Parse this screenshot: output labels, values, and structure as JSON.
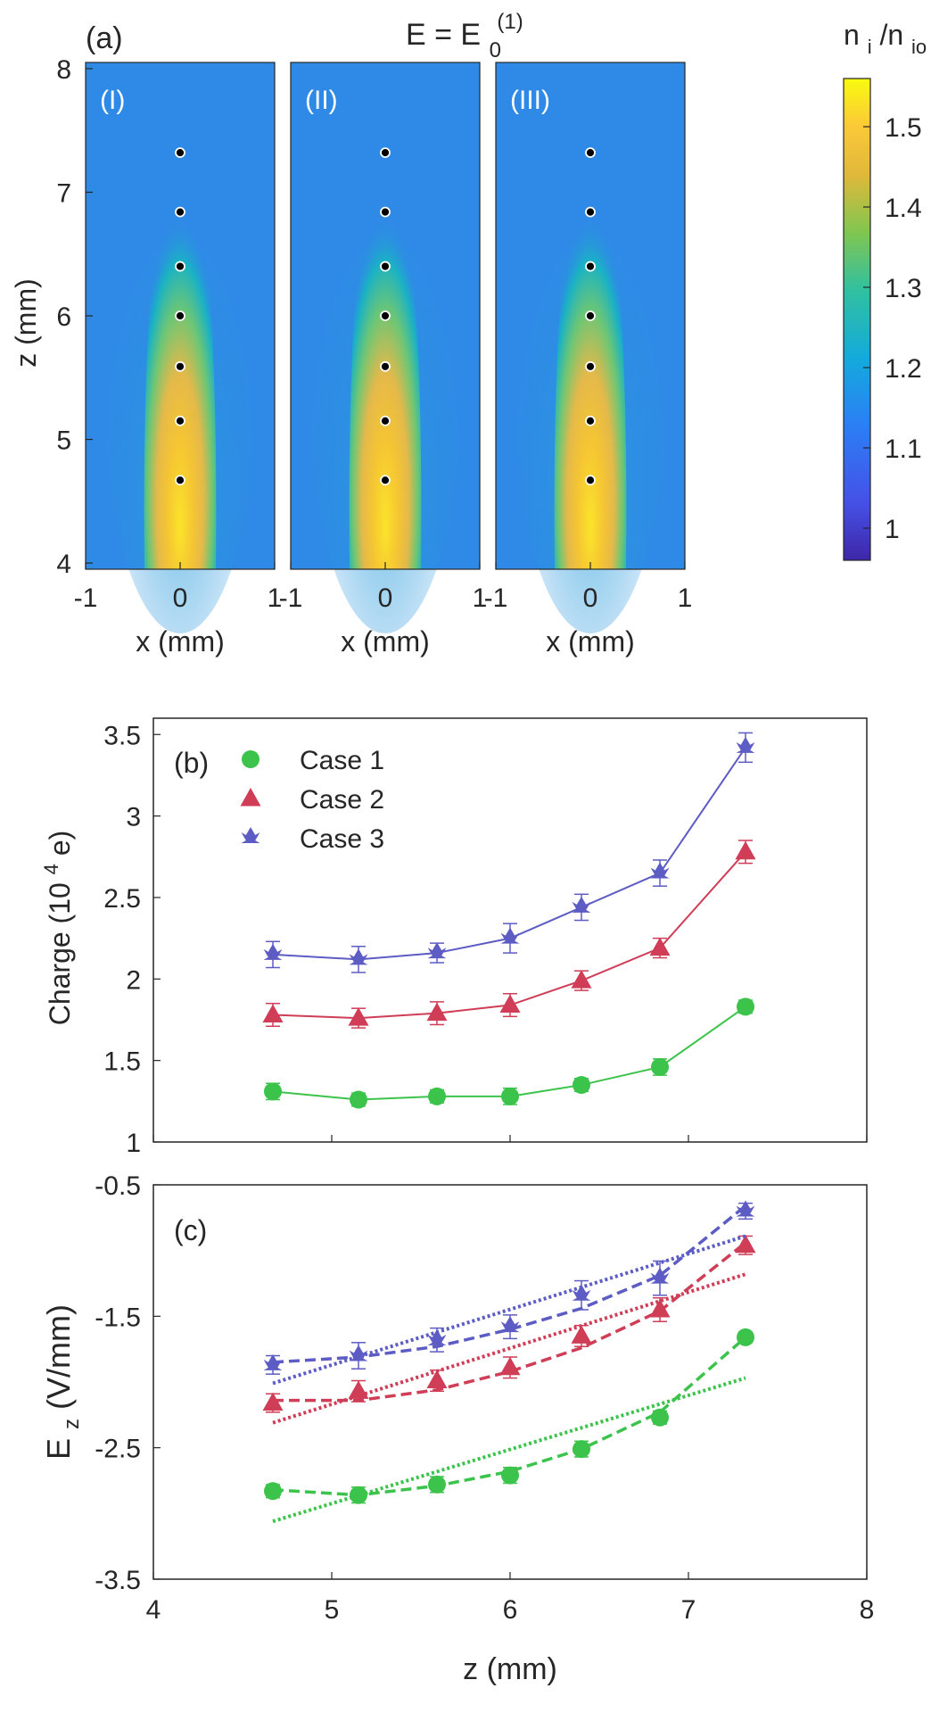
{
  "figure": {
    "panel_a_label": "(a)",
    "panel_a_title_base": "E = E",
    "panel_a_title_sub": "0",
    "panel_a_title_sup": "(1)",
    "colorbar_label_n": "n",
    "colorbar_label_i": "i",
    "colorbar_label_slash": "/n",
    "colorbar_label_io": "io"
  },
  "heatmap_panels": [
    {
      "label": "(I)",
      "xlabel": "x (mm)"
    },
    {
      "label": "(II)",
      "xlabel": "x (mm)"
    },
    {
      "label": "(III)",
      "xlabel": "x (mm)"
    }
  ],
  "colors": {
    "case1": "#3cc34b",
    "case2": "#cf3d56",
    "case3": "#5c5cc4",
    "axis": "#262626"
  },
  "chart_data": [
    {
      "type": "heatmap",
      "panels": [
        "(I)",
        "(II)",
        "(III)"
      ],
      "xlabel": "x (mm)",
      "ylabel": "z (mm)",
      "xlim": [
        -1,
        1
      ],
      "ylim": [
        3.95,
        8.05
      ],
      "xticks": [
        -1,
        0,
        1
      ],
      "xtick_labels": [
        "-1",
        "0",
        "1"
      ],
      "yticks": [
        4,
        5,
        6,
        7,
        8
      ],
      "colorbar": {
        "label": "n_i/n_io",
        "range": [
          0.96,
          1.56
        ],
        "ticks": [
          1,
          1.1,
          1.2,
          1.3,
          1.4,
          1.5
        ],
        "tick_labels": [
          "1",
          "1.1",
          "1.2",
          "1.3",
          "1.4",
          "1.5"
        ]
      },
      "dust_particles": {
        "x": 0,
        "z": [
          4.67,
          5.15,
          5.59,
          6.0,
          6.4,
          6.84,
          7.32
        ]
      }
    },
    {
      "type": "line",
      "panel": "(b)",
      "ylabel_main": "Charge (10",
      "ylabel_exp": "4",
      "ylabel_unit": " e)",
      "xlim": [
        4,
        8
      ],
      "ylim": [
        1,
        3.6
      ],
      "yticks": [
        1,
        1.5,
        2,
        2.5,
        3,
        3.5
      ],
      "ytick_labels": [
        "1",
        "1.5",
        "2",
        "2.5",
        "3",
        "3.5"
      ],
      "x": [
        4.67,
        5.15,
        5.59,
        6.0,
        6.4,
        6.84,
        7.32
      ],
      "series": [
        {
          "name": "Case 1",
          "marker": "circle",
          "values": [
            1.31,
            1.26,
            1.28,
            1.28,
            1.35,
            1.46,
            1.83
          ],
          "errors": [
            0.05,
            0.04,
            0.04,
            0.05,
            0.04,
            0.05,
            0.04
          ]
        },
        {
          "name": "Case 2",
          "marker": "triangle",
          "values": [
            1.78,
            1.76,
            1.79,
            1.84,
            1.99,
            2.19,
            2.78
          ],
          "errors": [
            0.07,
            0.06,
            0.07,
            0.07,
            0.06,
            0.06,
            0.07
          ]
        },
        {
          "name": "Case 3",
          "marker": "star",
          "values": [
            2.15,
            2.12,
            2.16,
            2.25,
            2.44,
            2.65,
            3.42
          ],
          "errors": [
            0.08,
            0.08,
            0.06,
            0.09,
            0.08,
            0.08,
            0.09
          ]
        }
      ]
    },
    {
      "type": "line",
      "panel": "(c)",
      "xlabel": "z (mm)",
      "ylabel_main": "E",
      "ylabel_sub": "z",
      "ylabel_unit": " (V/mm)",
      "xlim": [
        4,
        8
      ],
      "ylim": [
        -3.5,
        -0.5
      ],
      "xticks": [
        4,
        5,
        6,
        7,
        8
      ],
      "yticks": [
        -3.5,
        -2.5,
        -1.5,
        -0.5
      ],
      "ytick_labels": [
        "-3.5",
        "-2.5",
        "-1.5",
        "-0.5"
      ],
      "x": [
        4.67,
        5.15,
        5.59,
        6.0,
        6.4,
        6.84,
        7.32
      ],
      "series": [
        {
          "name": "Case 1",
          "marker": "circle",
          "values": [
            -2.83,
            -2.86,
            -2.78,
            -2.71,
            -2.51,
            -2.27,
            -1.66
          ],
          "errors": [
            0.05,
            0.06,
            0.06,
            0.06,
            0.06,
            0.05,
            0.04
          ],
          "linear_fit": [
            [
              4.67,
              -3.06
            ],
            [
              7.32,
              -1.97
            ]
          ],
          "quadratic_fit": [
            [
              4.67,
              -2.82
            ],
            [
              5.15,
              -2.86
            ],
            [
              5.59,
              -2.79
            ],
            [
              6.0,
              -2.68
            ],
            [
              6.4,
              -2.51
            ],
            [
              6.84,
              -2.23
            ],
            [
              7.32,
              -1.66
            ]
          ]
        },
        {
          "name": "Case 2",
          "marker": "triangle",
          "values": [
            -2.16,
            -2.07,
            -1.99,
            -1.89,
            -1.65,
            -1.45,
            -0.96
          ],
          "errors": [
            0.07,
            0.08,
            0.08,
            0.08,
            0.08,
            0.09,
            0.07
          ],
          "linear_fit": [
            [
              4.67,
              -2.31
            ],
            [
              7.32,
              -1.18
            ]
          ],
          "quadratic_fit": [
            [
              4.67,
              -2.14
            ],
            [
              5.15,
              -2.14
            ],
            [
              5.59,
              -2.06
            ],
            [
              6.0,
              -1.92
            ],
            [
              6.4,
              -1.74
            ],
            [
              6.84,
              -1.46
            ],
            [
              7.32,
              -0.94
            ]
          ]
        },
        {
          "name": "Case 3",
          "marker": "star",
          "values": [
            -1.87,
            -1.8,
            -1.68,
            -1.58,
            -1.34,
            -1.21,
            -0.7
          ],
          "errors": [
            0.07,
            0.1,
            0.09,
            0.09,
            0.11,
            0.13,
            0.06
          ],
          "linear_fit": [
            [
              4.67,
              -2.01
            ],
            [
              7.32,
              -0.89
            ]
          ],
          "quadratic_fit": [
            [
              4.67,
              -1.85
            ],
            [
              5.15,
              -1.81
            ],
            [
              5.59,
              -1.73
            ],
            [
              6.0,
              -1.6
            ],
            [
              6.4,
              -1.44
            ],
            [
              6.84,
              -1.19
            ],
            [
              7.32,
              -0.66
            ]
          ]
        }
      ]
    }
  ]
}
